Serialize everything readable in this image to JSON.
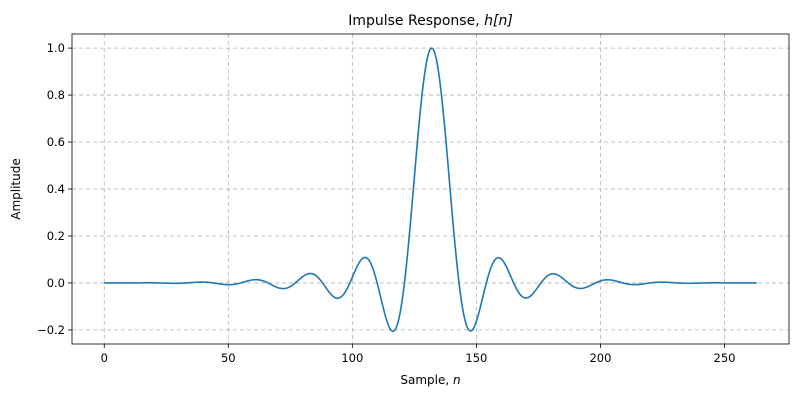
{
  "chart_data": {
    "type": "line",
    "title": "Impulse Response, h[n]",
    "title_parts": {
      "text": "Impulse Response, ",
      "math": "h[n]"
    },
    "xlabel": "Sample, n",
    "xlabel_parts": {
      "text": "Sample, ",
      "math": "n"
    },
    "ylabel": "Amplitude",
    "xlim": [
      -13,
      276
    ],
    "ylim": [
      -0.26,
      1.06
    ],
    "xticks": [
      0,
      50,
      100,
      150,
      200,
      250
    ],
    "xtick_labels": [
      "0",
      "50",
      "100",
      "150",
      "200",
      "250"
    ],
    "yticks": [
      -0.2,
      0.0,
      0.2,
      0.4,
      0.6,
      0.8,
      1.0
    ],
    "ytick_labels": [
      "−0.2",
      "0.0",
      "0.2",
      "0.4",
      "0.6",
      "0.8",
      "1.0"
    ],
    "grid": true,
    "grid_style": "dashed",
    "legend": null,
    "line_color": "#1f77b4",
    "description": "Windowed-sinc lowpass FIR impulse response, 264 taps (n = 0..263), peak 1.0 at n = 132, Blackman-like window, zero crossings every ~11 samples",
    "generator": {
      "length": 264,
      "center": 132,
      "zero_spacing": 11,
      "window": "blackman"
    },
    "series": [
      {
        "name": "h[n]",
        "x": [
          0,
          6,
          12,
          18,
          24,
          30,
          36,
          40,
          44,
          48,
          52,
          56,
          60,
          62,
          64,
          68,
          72,
          74,
          76,
          80,
          83,
          86,
          90,
          94,
          96,
          98,
          101,
          104,
          105,
          107,
          110,
          113,
          116,
          118,
          120,
          122,
          124,
          126,
          128,
          130,
          132,
          134,
          136,
          138,
          140,
          142,
          144,
          146,
          148,
          150,
          153,
          156,
          159,
          161,
          164,
          167,
          170,
          172,
          174,
          178,
          181,
          184,
          188,
          192,
          196,
          200,
          204,
          208,
          212,
          216,
          220,
          224,
          228,
          232,
          238,
          244,
          250,
          256,
          263
        ],
        "values": [
          0.0,
          0.0,
          0.0,
          0.0,
          -0.0005,
          -0.002,
          0.0,
          0.003,
          0.002,
          -0.003,
          -0.008,
          -0.007,
          0.006,
          0.013,
          0.015,
          0.006,
          -0.018,
          -0.024,
          -0.022,
          0.008,
          0.04,
          0.038,
          0.002,
          -0.055,
          -0.065,
          -0.058,
          0.0,
          0.095,
          0.108,
          0.1,
          0.0,
          -0.14,
          -0.207,
          -0.19,
          -0.11,
          0.01,
          0.17,
          0.38,
          0.6,
          0.86,
          1.0,
          0.86,
          0.6,
          0.38,
          0.17,
          0.01,
          -0.11,
          -0.19,
          -0.207,
          -0.15,
          0.0,
          0.1,
          0.108,
          0.09,
          0.0,
          -0.055,
          -0.065,
          -0.05,
          -0.02,
          0.035,
          0.04,
          0.025,
          -0.01,
          -0.024,
          -0.018,
          0.01,
          0.015,
          0.006,
          -0.007,
          -0.008,
          -0.003,
          0.002,
          0.003,
          0.0,
          -0.002,
          -0.0005,
          0.0,
          0.0,
          0.0
        ]
      }
    ]
  }
}
